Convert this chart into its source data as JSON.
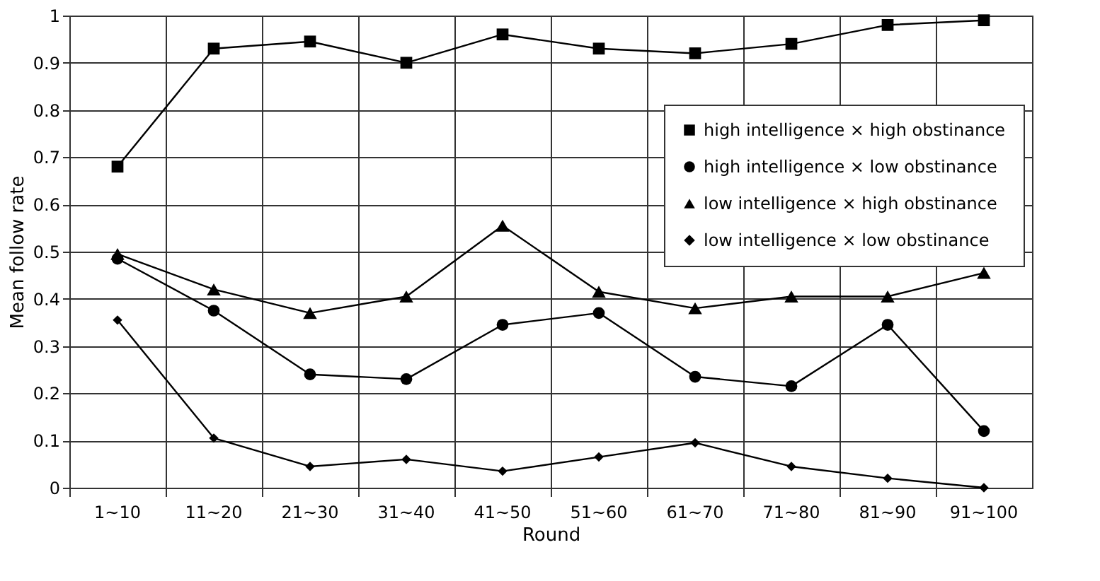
{
  "chart_data": {
    "type": "line",
    "xlabel": "Round",
    "ylabel": "Mean follow rate",
    "categories": [
      "1~10",
      "11~20",
      "21~30",
      "31~40",
      "41~50",
      "51~60",
      "61~70",
      "71~80",
      "81~90",
      "91~100"
    ],
    "ylim": [
      0,
      1
    ],
    "yticks": [
      0,
      0.1,
      0.2,
      0.3,
      0.4,
      0.5,
      0.6,
      0.7,
      0.8,
      0.9,
      1
    ],
    "grid": true,
    "legend": "top right",
    "line_style": "solid",
    "series": [
      {
        "name": "high intelligence × high obstinance",
        "color": "#000000",
        "marker": "square",
        "values": [
          0.68,
          0.93,
          0.945,
          0.9,
          0.96,
          0.93,
          0.92,
          0.94,
          0.98,
          0.99
        ]
      },
      {
        "name": "high intelligence × low obstinance",
        "color": "#000000",
        "marker": "circle",
        "values": [
          0.485,
          0.375,
          0.24,
          0.23,
          0.345,
          0.37,
          0.235,
          0.215,
          0.345,
          0.12
        ]
      },
      {
        "name": "low intelligence × high obstinance",
        "color": "#000000",
        "marker": "triangle",
        "values": [
          0.495,
          0.42,
          0.37,
          0.405,
          0.555,
          0.415,
          0.38,
          0.405,
          0.405,
          0.455
        ]
      },
      {
        "name": "low intelligence × low obstinance",
        "color": "#000000",
        "marker": "diamond",
        "values": [
          0.355,
          0.105,
          0.045,
          0.06,
          0.035,
          0.065,
          0.095,
          0.045,
          0.02,
          0.0
        ]
      }
    ]
  }
}
